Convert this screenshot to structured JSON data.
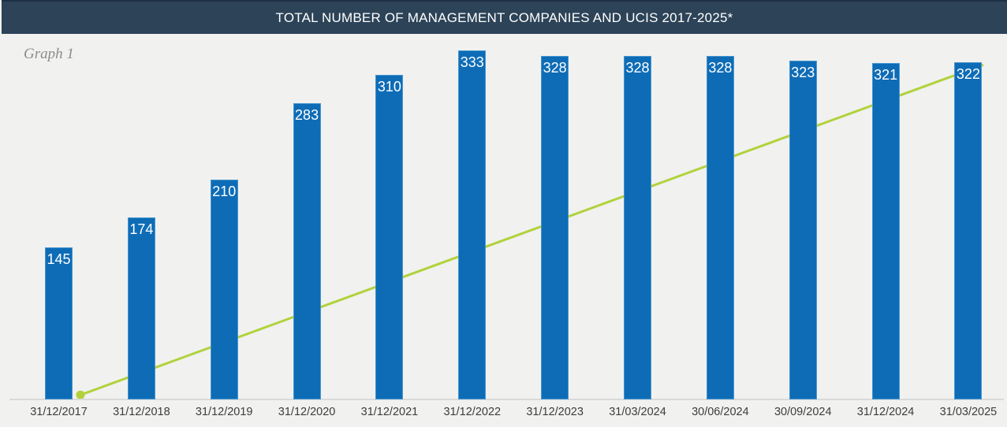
{
  "header": {
    "title": "TOTAL NUMBER OF MANAGEMENT COMPANIES AND UCIS 2017-2025*"
  },
  "graph_label": "Graph 1",
  "chart_data": {
    "type": "bar",
    "title": "TOTAL NUMBER OF MANAGEMENT COMPANIES AND UCIS 2017-2025*",
    "categories": [
      "31/12/2017",
      "31/12/2018",
      "31/12/2019",
      "31/12/2020",
      "31/12/2021",
      "31/12/2022",
      "31/12/2023",
      "31/03/2024",
      "30/06/2024",
      "30/09/2024",
      "31/12/2024",
      "31/03/2025"
    ],
    "values": [
      145,
      174,
      210,
      283,
      310,
      333,
      328,
      328,
      328,
      323,
      321,
      322
    ],
    "data_labels": [
      "145",
      "174",
      "210",
      "283",
      "310",
      "333",
      "328",
      "328",
      "328",
      "323",
      "321",
      "322"
    ],
    "xlabel": "",
    "ylabel": "",
    "ylim": [
      0,
      345
    ],
    "grid": false,
    "legend": "none",
    "trend_line": {
      "shape": "straight",
      "start": {
        "category": "31/12/2017",
        "value": 5
      },
      "end": {
        "category": "31/03/2025",
        "value": 320
      },
      "marker": "dot-at-start",
      "drawn_behind_bars": true
    },
    "colors": {
      "bar_fill": "#0e6cb6",
      "bar_border": "#4796cf",
      "bar_label": "#ffffff",
      "trend_line": "#b1d23b",
      "axis_line": "#d9d9d9",
      "tick_label": "#3d3d3d",
      "header_bg": "#2c4358",
      "header_top_border": "#1e3044",
      "header_text": "#ffffff",
      "background": "#f1f1ef",
      "graph_label_color": "#8c8c8c"
    }
  }
}
